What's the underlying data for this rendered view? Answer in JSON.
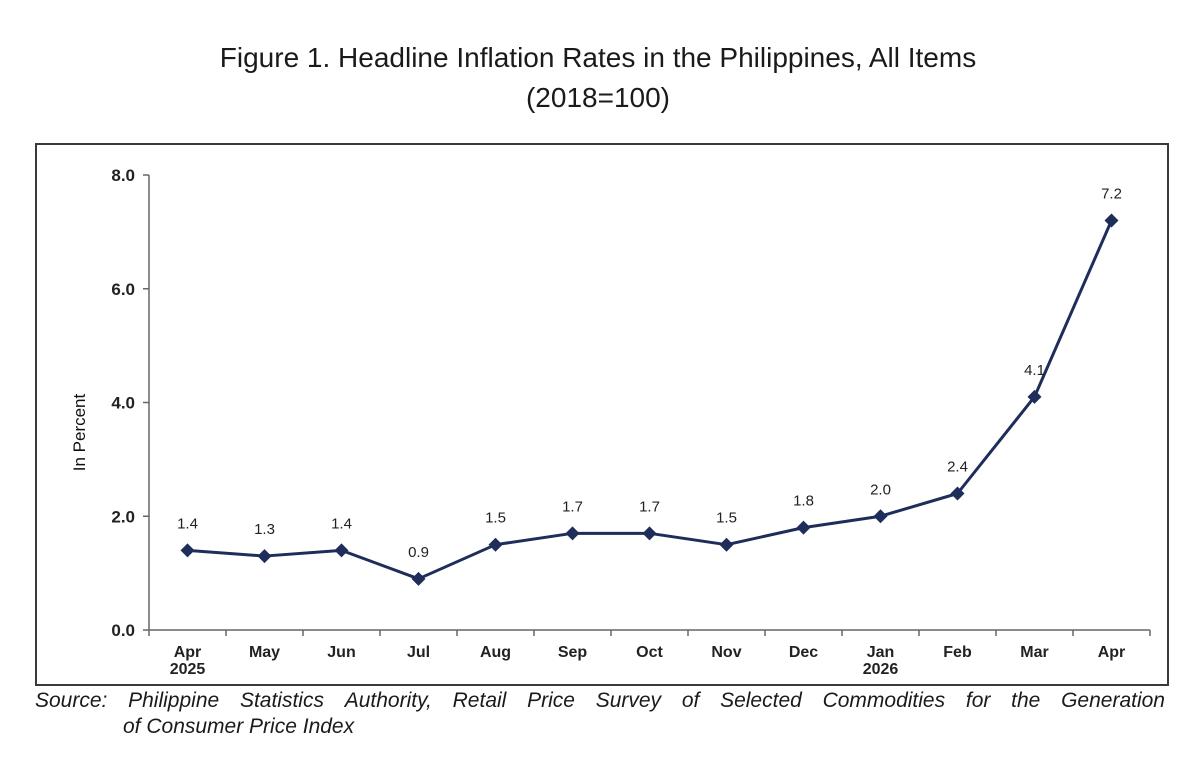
{
  "title": {
    "line1": "Figure 1. Headline Inflation Rates in the Philippines, All Items",
    "line2": "(2018=100)"
  },
  "source": {
    "words": [
      "Source:",
      "Philippine",
      "Statistics",
      "Authority,",
      "Retail",
      "Price",
      "Survey",
      "of",
      "Selected",
      "Commodities",
      "for",
      "the",
      "Generation"
    ],
    "line2": "of Consumer Price Index"
  },
  "chart_data": {
    "type": "line",
    "title": "Figure 1. Headline Inflation Rates in the Philippines, All Items (2018=100)",
    "xlabel": "",
    "ylabel": "In Percent",
    "ylim": [
      0,
      8
    ],
    "yticks": [
      "0.0",
      "2.0",
      "4.0",
      "6.0",
      "8.0"
    ],
    "grid": false,
    "legend": "none",
    "categories": [
      "Apr",
      "May",
      "Jun",
      "Jul",
      "Aug",
      "Sep",
      "Oct",
      "Nov",
      "Dec",
      "Jan",
      "Feb",
      "Mar",
      "Apr"
    ],
    "category_years": [
      "2025",
      "",
      "",
      "",
      "",
      "",
      "",
      "",
      "",
      "2026",
      "",
      "",
      ""
    ],
    "series": [
      {
        "values": [
          1.4,
          1.3,
          1.4,
          0.9,
          1.5,
          1.7,
          1.7,
          1.5,
          1.8,
          2.0,
          2.4,
          4.1,
          7.2
        ],
        "labels": [
          "1.4",
          "1.3",
          "1.4",
          "0.9",
          "1.5",
          "1.7",
          "1.7",
          "1.5",
          "1.8",
          "2.0",
          "2.4",
          "4.1",
          "7.2"
        ],
        "color": "#1f2d5a",
        "marker": "diamond"
      }
    ]
  }
}
